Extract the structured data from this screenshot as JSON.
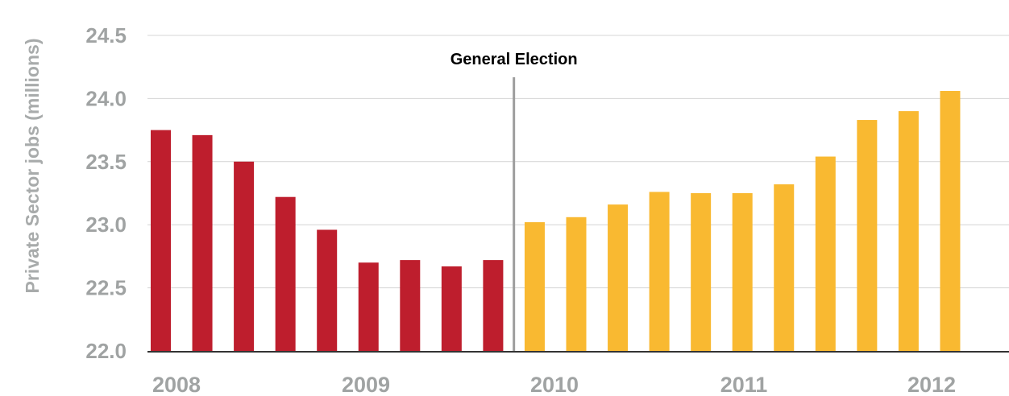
{
  "chart_data": {
    "type": "bar",
    "title": "",
    "xlabel": "",
    "ylabel": "Private Sector jobs (millions)",
    "ylim": [
      22.0,
      24.5
    ],
    "yticks": [
      "22.0",
      "22.5",
      "23.0",
      "23.5",
      "24.0",
      "24.5"
    ],
    "xtick_labels": [
      "2008",
      "2009",
      "2010",
      "2011",
      "2012"
    ],
    "grid": true,
    "annotation": {
      "text": "General Election",
      "after_bar": 9
    },
    "colors": {
      "before": "#be1e2d",
      "after": "#f9b931",
      "grid": "#d4d4d4",
      "divider": "#9d9d9d"
    },
    "series": [
      {
        "values": [
          23.75,
          23.71,
          23.5,
          23.22,
          22.96,
          22.7,
          22.72,
          22.67,
          22.72,
          23.02,
          23.06,
          23.16,
          23.26,
          23.25,
          23.25,
          23.32,
          23.54,
          23.83,
          23.9,
          24.06
        ]
      }
    ]
  }
}
